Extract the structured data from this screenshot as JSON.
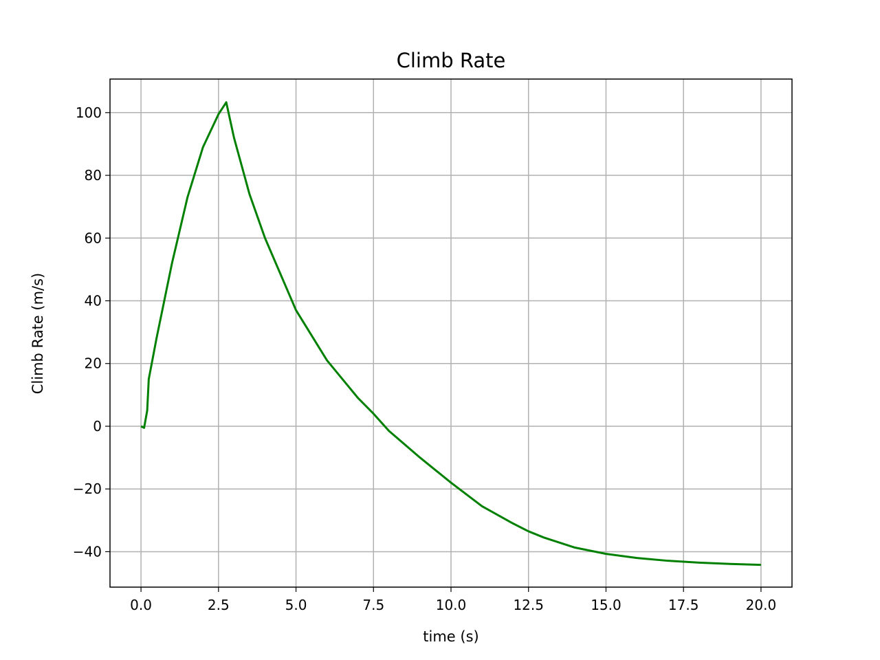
{
  "chart_data": {
    "type": "line",
    "title": "Climb Rate",
    "xlabel": "time (s)",
    "ylabel": "Climb Rate (m/s)",
    "x": [
      0,
      0.1,
      0.2,
      0.25,
      0.5,
      1.0,
      1.5,
      2.0,
      2.5,
      2.75,
      3.0,
      3.5,
      4.0,
      5.0,
      6.0,
      7.0,
      7.5,
      8.0,
      9.0,
      10.0,
      11.0,
      12.0,
      12.5,
      13.0,
      14.0,
      15.0,
      16.0,
      17.0,
      18.0,
      19.0,
      20.0
    ],
    "series": [
      {
        "color": "#008000",
        "values": [
          0,
          -0.5,
          5,
          15,
          28,
          52,
          73,
          89,
          99.5,
          103.3,
          92,
          74,
          60,
          37,
          21,
          9,
          4,
          -1.5,
          -10,
          -18,
          -25.5,
          -31,
          -33.5,
          -35.5,
          -38.7,
          -40.7,
          -42,
          -42.9,
          -43.5,
          -43.9,
          -44.2
        ]
      }
    ],
    "xlim": [
      -1,
      21
    ],
    "ylim": [
      -51.3,
      110.7
    ],
    "xticks": [
      {
        "value": 0,
        "label": "0.0"
      },
      2.5,
      {
        "value": 5,
        "label": "5.0"
      },
      7.5,
      {
        "value": 10,
        "label": "10.0"
      },
      12.5,
      {
        "value": 15,
        "label": "15.0"
      },
      17.5,
      {
        "value": 20,
        "label": "20.0"
      }
    ],
    "yticks": [
      {
        "value": -40,
        "label": "−40"
      },
      {
        "value": -20,
        "label": "−20"
      },
      0,
      20,
      40,
      60,
      80,
      100
    ],
    "grid": true
  }
}
